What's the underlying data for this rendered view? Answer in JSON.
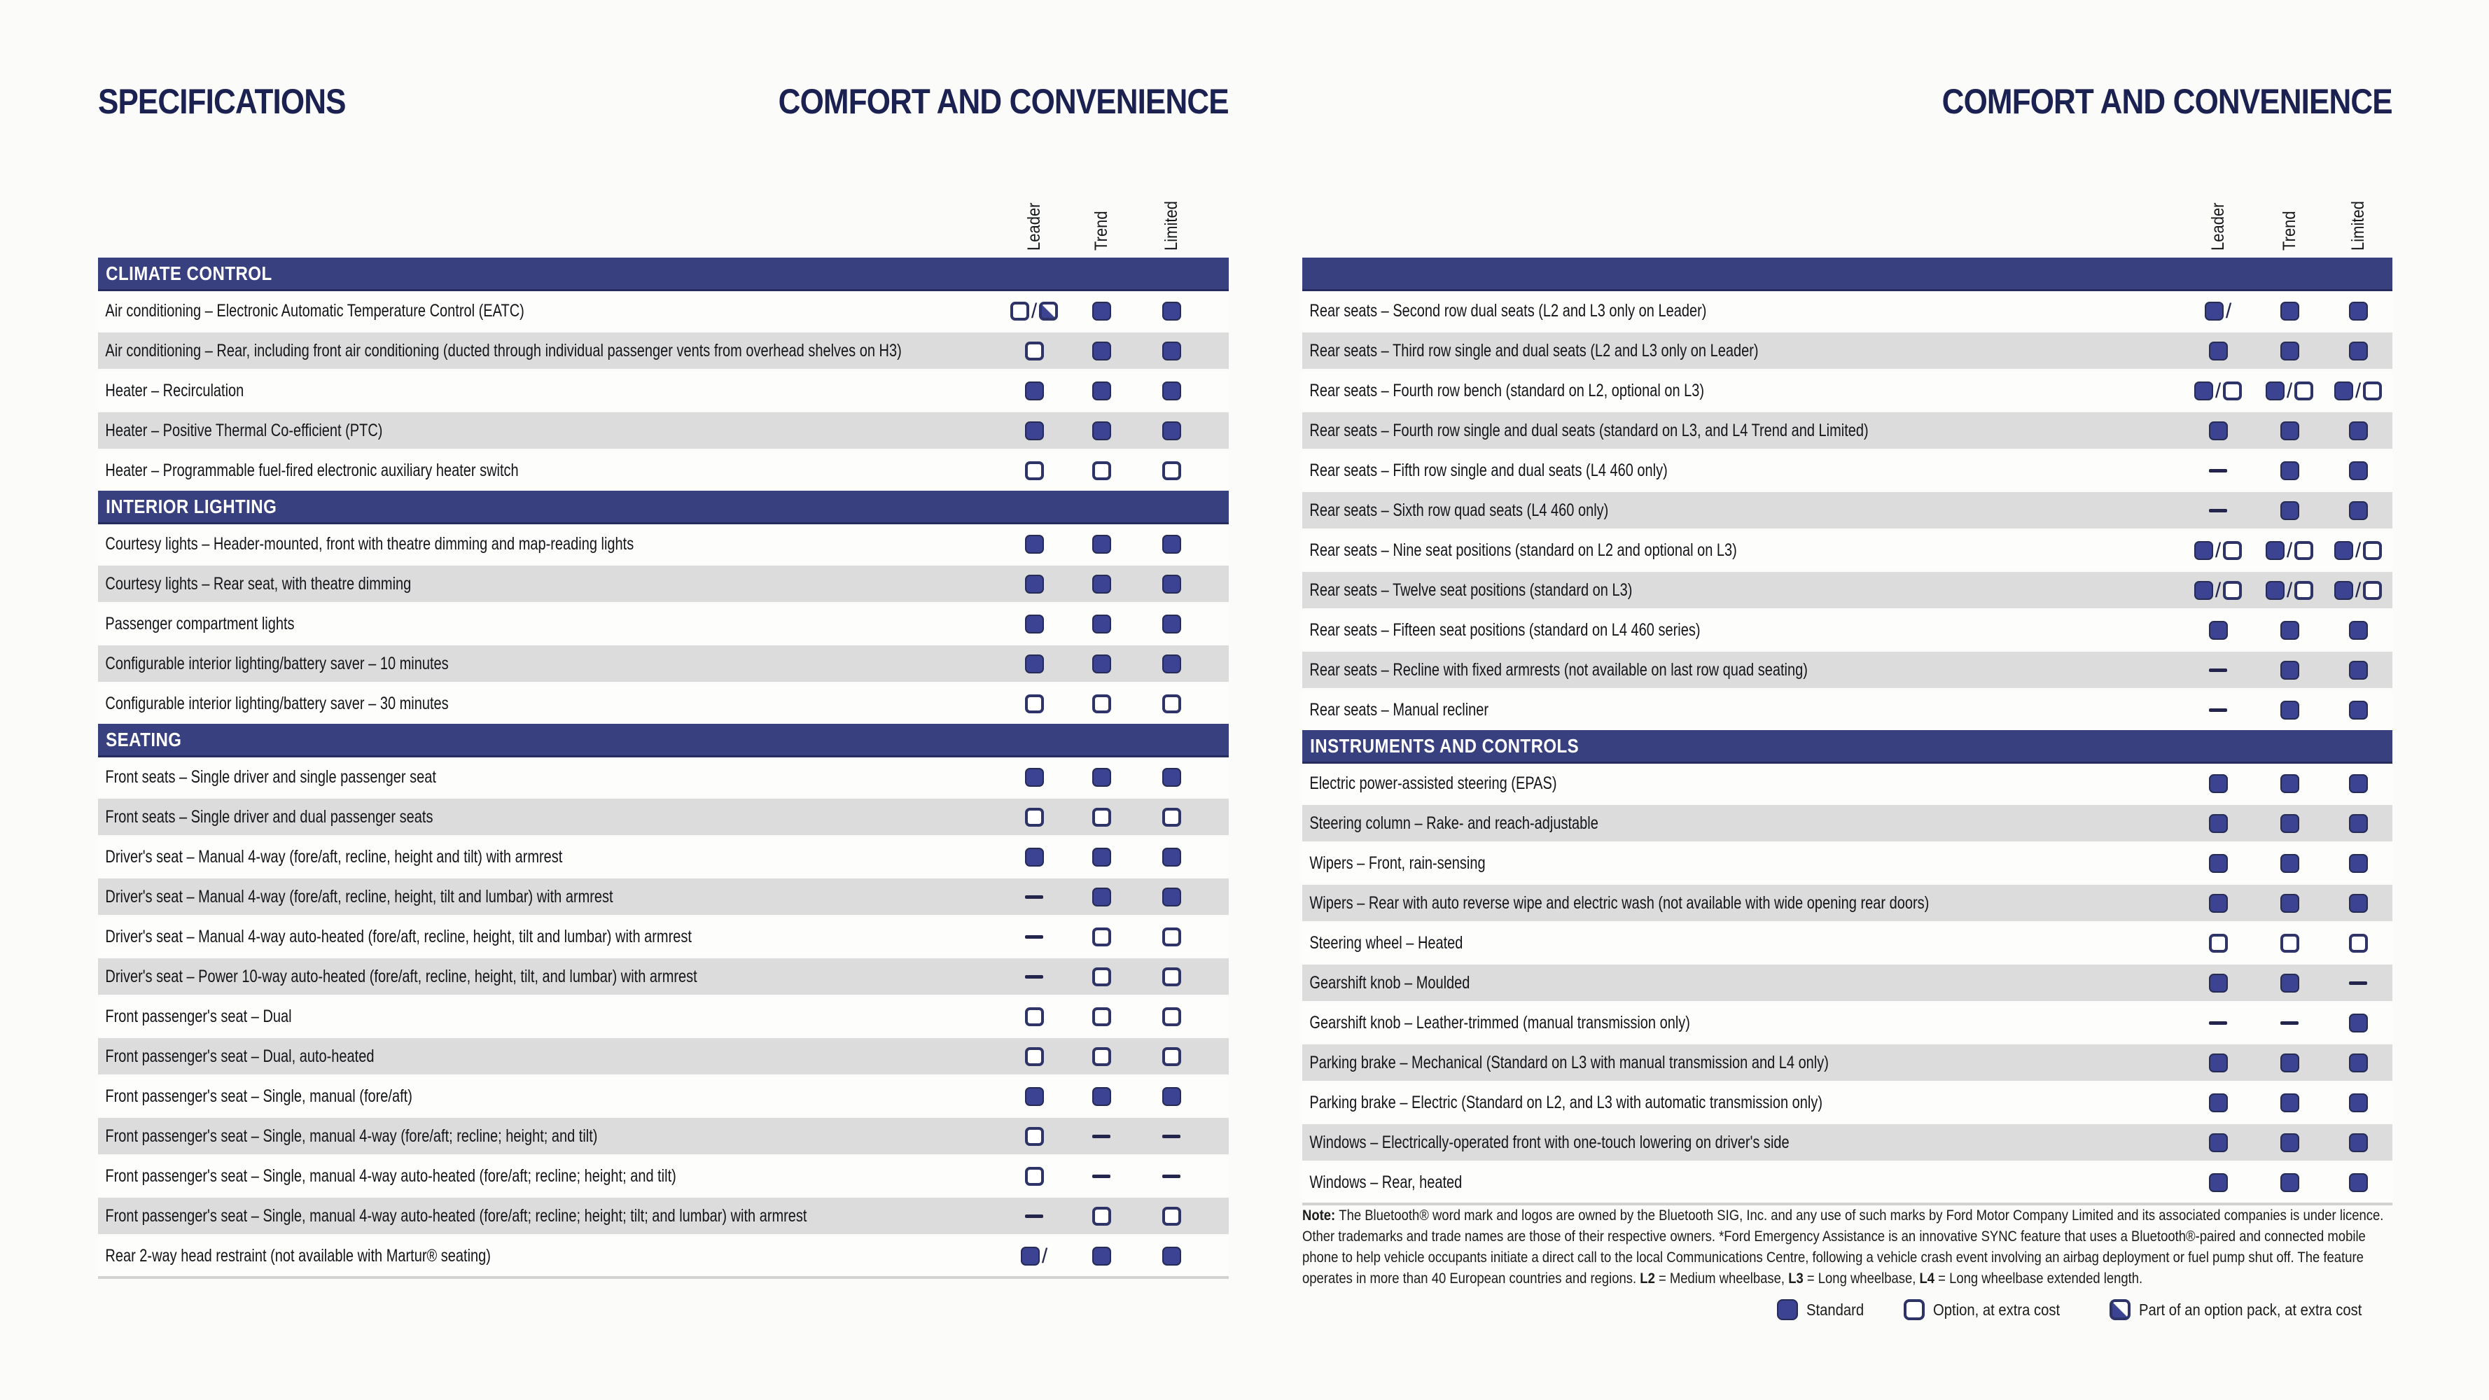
{
  "titles": {
    "left_kicker": "SPECIFICATIONS",
    "left_section": "COMFORT AND CONVENIENCE",
    "right_section": "COMFORT AND CONVENIENCE"
  },
  "columns": [
    "Leader",
    "Trend",
    "Limited"
  ],
  "legend": [
    {
      "symbol": "S",
      "label": "Standard"
    },
    {
      "symbol": "O",
      "label": "Option, at extra cost"
    },
    {
      "symbol": "P",
      "label": "Part of an option pack, at extra cost"
    }
  ],
  "note_parts": [
    {
      "text": "Note: ",
      "bold": true
    },
    {
      "text": "The Bluetooth® word mark and logos are owned by the Bluetooth SIG, Inc. and any use of such marks by Ford Motor Company Limited and its associated companies is under licence. Other trademarks and trade names are those of their respective owners. *Ford Emergency Assistance is an innovative SYNC feature that uses a Bluetooth®-paired and connected mobile phone to help vehicle occupants initiate a direct call to the local Communications Centre, following a vehicle crash event involving an airbag deployment or fuel pump shut off. The feature operates in more than 40 European countries and regions. ",
      "bold": false
    },
    {
      "text": "L2",
      "bold": true
    },
    {
      "text": " = Medium wheelbase, ",
      "bold": false
    },
    {
      "text": "L3",
      "bold": true
    },
    {
      "text": " = Long wheelbase, ",
      "bold": false
    },
    {
      "text": "L4",
      "bold": true
    },
    {
      "text": " = Long wheelbase extended length.",
      "bold": false
    }
  ],
  "colors": {
    "section_bar": "#394080",
    "standard_fill": "#3b4392",
    "outline_border": "#2e3468",
    "gray_row": "#dcdcdc",
    "title_navy": "#1b2150"
  },
  "left_table": {
    "sections": [
      {
        "header": "CLIMATE CONTROL",
        "rows": [
          {
            "label": "Air conditioning – Electronic Automatic Temperature Control (EATC)",
            "values": [
              "O/P",
              "S",
              "S"
            ]
          },
          {
            "label": "Air conditioning – Rear, including front air conditioning (ducted through individual passenger vents from overhead shelves on H3)",
            "values": [
              "O",
              "S",
              "S"
            ]
          },
          {
            "label": "Heater – Recirculation",
            "values": [
              "S",
              "S",
              "S"
            ]
          },
          {
            "label": "Heater – Positive Thermal Co-efficient (PTC)",
            "values": [
              "S",
              "S",
              "S"
            ]
          },
          {
            "label": "Heater – Programmable fuel-fired electronic auxiliary heater switch",
            "values": [
              "O",
              "O",
              "O"
            ]
          }
        ]
      },
      {
        "header": "INTERIOR LIGHTING",
        "rows": [
          {
            "label": "Courtesy lights – Header-mounted, front with theatre dimming and map-reading lights",
            "values": [
              "S",
              "S",
              "S"
            ]
          },
          {
            "label": "Courtesy lights – Rear seat, with theatre dimming",
            "values": [
              "S",
              "S",
              "S"
            ]
          },
          {
            "label": "Passenger compartment lights",
            "values": [
              "S",
              "S",
              "S"
            ]
          },
          {
            "label": "Configurable interior lighting/battery saver – 10 minutes",
            "values": [
              "S",
              "S",
              "S"
            ]
          },
          {
            "label": "Configurable interior lighting/battery saver – 30 minutes",
            "values": [
              "O",
              "O",
              "O"
            ]
          }
        ]
      },
      {
        "header": "SEATING",
        "rows": [
          {
            "label": "Front seats – Single driver and single passenger seat",
            "values": [
              "S",
              "S",
              "S"
            ]
          },
          {
            "label": "Front seats – Single driver and dual passenger seats",
            "values": [
              "O",
              "O",
              "O"
            ]
          },
          {
            "label": "Driver's seat – Manual 4-way (fore/aft, recline, height and tilt) with armrest",
            "values": [
              "S",
              "S",
              "S"
            ]
          },
          {
            "label": "Driver's seat – Manual 4-way (fore/aft, recline, height, tilt and lumbar) with armrest",
            "values": [
              "-",
              "S",
              "S"
            ]
          },
          {
            "label": "Driver's seat – Manual 4-way auto-heated (fore/aft, recline, height, tilt and lumbar) with armrest",
            "values": [
              "-",
              "O",
              "O"
            ]
          },
          {
            "label": "Driver's seat – Power 10-way auto-heated (fore/aft, recline, height, tilt, and lumbar) with armrest",
            "values": [
              "-",
              "O",
              "O"
            ]
          },
          {
            "label": "Front passenger's seat – Dual",
            "values": [
              "O",
              "O",
              "O"
            ]
          },
          {
            "label": "Front passenger's seat – Dual, auto-heated",
            "values": [
              "O",
              "O",
              "O"
            ]
          },
          {
            "label": "Front passenger's seat – Single, manual (fore/aft)",
            "values": [
              "S",
              "S",
              "S"
            ]
          },
          {
            "label": "Front passenger's seat – Single, manual 4-way (fore/aft; recline; height; and tilt)",
            "values": [
              "O",
              "-",
              "-"
            ]
          },
          {
            "label": "Front passenger's seat – Single, manual 4-way auto-heated (fore/aft; recline; height; and tilt)",
            "values": [
              "O",
              "-",
              "-"
            ]
          },
          {
            "label": "Front passenger's seat – Single, manual 4-way auto-heated (fore/aft; recline; height; tilt; and lumbar) with armrest",
            "values": [
              "-",
              "O",
              "O"
            ]
          },
          {
            "label": "Rear 2-way head restraint (not available with Martur® seating)",
            "values": [
              "S/",
              "S",
              "S"
            ]
          }
        ]
      }
    ]
  },
  "right_table": {
    "sections": [
      {
        "header": "",
        "rows": [
          {
            "label": "Rear seats – Second row dual seats (L2 and L3 only on Leader)",
            "values": [
              "S/",
              "S",
              "S"
            ]
          },
          {
            "label": "Rear seats – Third row single and dual seats (L2 and L3 only on Leader)",
            "values": [
              "S",
              "S",
              "S"
            ]
          },
          {
            "label": "Rear seats – Fourth row bench (standard on L2, optional on L3)",
            "values": [
              "S/O",
              "S/O",
              "S/O"
            ]
          },
          {
            "label": "Rear seats – Fourth row single and dual seats (standard on L3, and L4 Trend and Limited)",
            "values": [
              "S",
              "S",
              "S"
            ]
          },
          {
            "label": "Rear seats – Fifth row single and dual seats (L4 460 only)",
            "values": [
              "-",
              "S",
              "S"
            ]
          },
          {
            "label": "Rear seats – Sixth row quad seats (L4 460 only)",
            "values": [
              "-",
              "S",
              "S"
            ]
          },
          {
            "label": "Rear seats – Nine seat positions (standard on L2 and optional on L3)",
            "values": [
              "S/O",
              "S/O",
              "S/O"
            ]
          },
          {
            "label": "Rear seats – Twelve seat positions (standard on L3)",
            "values": [
              "S/O",
              "S/O",
              "S/O"
            ]
          },
          {
            "label": "Rear seats – Fifteen seat positions (standard on L4 460 series)",
            "values": [
              "S",
              "S",
              "S"
            ]
          },
          {
            "label": "Rear seats – Recline with fixed armrests (not available on last row quad seating)",
            "values": [
              "-",
              "S",
              "S"
            ]
          },
          {
            "label": "Rear seats – Manual recliner",
            "values": [
              "-",
              "S",
              "S"
            ]
          }
        ]
      },
      {
        "header": "INSTRUMENTS AND CONTROLS",
        "rows": [
          {
            "label": "Electric power-assisted steering (EPAS)",
            "values": [
              "S",
              "S",
              "S"
            ]
          },
          {
            "label": "Steering column – Rake- and reach-adjustable",
            "values": [
              "S",
              "S",
              "S"
            ]
          },
          {
            "label": "Wipers – Front, rain-sensing",
            "values": [
              "S",
              "S",
              "S"
            ]
          },
          {
            "label": "Wipers – Rear with auto reverse wipe and electric wash (not available with wide opening rear doors)",
            "values": [
              "S",
              "S",
              "S"
            ]
          },
          {
            "label": "Steering wheel – Heated",
            "values": [
              "O",
              "O",
              "O"
            ]
          },
          {
            "label": "Gearshift knob – Moulded",
            "values": [
              "S",
              "S",
              "-"
            ]
          },
          {
            "label": "Gearshift knob – Leather-trimmed (manual transmission only)",
            "values": [
              "-",
              "-",
              "S"
            ]
          },
          {
            "label": "Parking brake – Mechanical (Standard on L3 with manual transmission and L4 only)",
            "values": [
              "S",
              "S",
              "S"
            ]
          },
          {
            "label": "Parking brake – Electric (Standard on L2, and L3 with automatic transmission only)",
            "values": [
              "S",
              "S",
              "S"
            ]
          },
          {
            "label": "Windows – Electrically-operated front with one-touch lowering on driver's side",
            "values": [
              "S",
              "S",
              "S"
            ]
          },
          {
            "label": "Windows – Rear, heated",
            "values": [
              "S",
              "S",
              "S"
            ]
          }
        ]
      }
    ]
  }
}
